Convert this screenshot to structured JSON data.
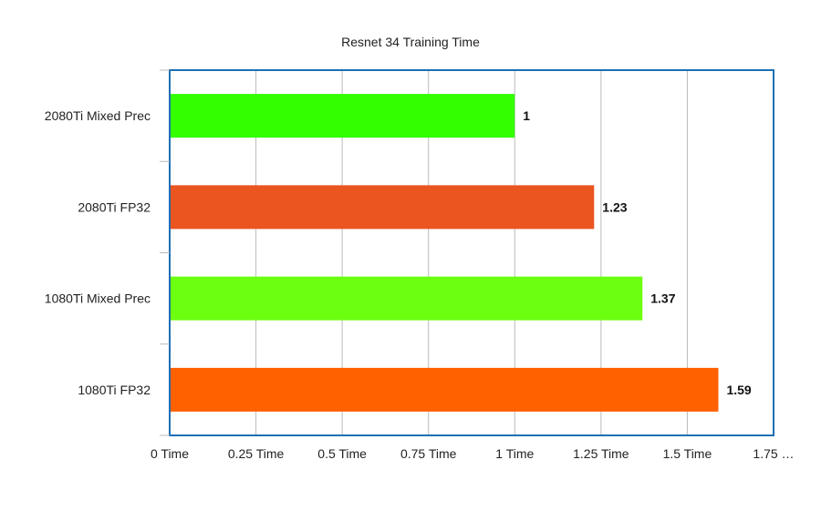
{
  "chart_data": {
    "type": "bar",
    "orientation": "horizontal",
    "title": "Resnet 34 Training Time",
    "xlabel": "",
    "ylabel": "",
    "categories": [
      "2080Ti Mixed Prec",
      "2080Ti FP32",
      "1080Ti Mixed Prec",
      "1080Ti FP32"
    ],
    "values": [
      1,
      1.23,
      1.37,
      1.59
    ],
    "data_labels": [
      "1",
      "1.23",
      "1.37",
      "1.59"
    ],
    "bar_colors": [
      "#33ff00",
      "#ea5520",
      "#6cff0f",
      "#ff6000"
    ],
    "xlim": [
      0,
      1.75
    ],
    "x_ticks": [
      0,
      0.25,
      0.5,
      0.75,
      1,
      1.25,
      1.5,
      1.75
    ],
    "x_tick_labels": [
      "0 Time",
      "0.25 Time",
      "0.5 Time",
      "0.75 Time",
      "1 Time",
      "1.25 Time",
      "1.5 Time",
      "1.75 …"
    ],
    "grid": "vertical",
    "legend": "none",
    "frame_color": "#1f6fb4",
    "grid_color": "#bbbbbb"
  }
}
